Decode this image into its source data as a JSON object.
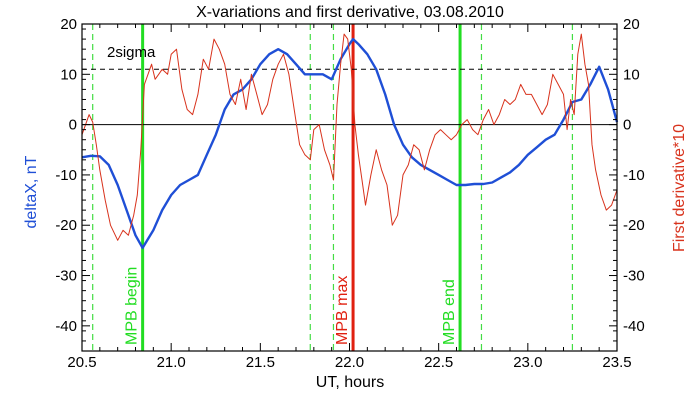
{
  "chart_data": {
    "type": "line",
    "title": "X-variations and first derivative, 03.08.2010",
    "xlabel": "UT, hours",
    "ylabel_left": "deltaX, nT",
    "ylabel_right": "First derivative*10",
    "xlim": [
      20.5,
      23.5
    ],
    "ylim": [
      -45,
      20
    ],
    "xticks": [
      20.5,
      21.0,
      21.5,
      22.0,
      22.5,
      23.0,
      23.5
    ],
    "xtick_labels": [
      "20.5",
      "21.0",
      "21.5",
      "22.0",
      "22.5",
      "23.0",
      "23.5"
    ],
    "yticks": [
      -40,
      -30,
      -20,
      -10,
      0,
      10,
      20
    ],
    "ytick_labels": [
      "-40",
      "-30",
      "-20",
      "-10",
      "0",
      "10",
      "20"
    ],
    "grid": false,
    "colors": {
      "deltaX": "#1f4fd6",
      "derivative": "#d8321c",
      "mpb_begin_end": "#22dd22",
      "mpb_max": "#e02010",
      "dashed_green": "#44dd44",
      "reference": "#000000"
    },
    "threshold": {
      "value": 11,
      "label": "2sigma"
    },
    "zero_line": 0,
    "vertical_markers": [
      {
        "x": 20.84,
        "label": "MPB begin",
        "style": "solid",
        "color": "green"
      },
      {
        "x": 22.02,
        "label": "MPB max",
        "style": "solid",
        "color": "red"
      },
      {
        "x": 22.62,
        "label": "MPB end",
        "style": "solid",
        "color": "green"
      }
    ],
    "dashed_lines": [
      20.56,
      21.78,
      21.91,
      22.74,
      23.25
    ],
    "series": [
      {
        "key": "deltaX",
        "axis": "left",
        "x": [
          20.5,
          20.55,
          20.6,
          20.65,
          20.7,
          20.75,
          20.8,
          20.84,
          20.9,
          20.95,
          21.0,
          21.05,
          21.1,
          21.15,
          21.2,
          21.25,
          21.3,
          21.35,
          21.4,
          21.45,
          21.5,
          21.55,
          21.6,
          21.65,
          21.7,
          21.75,
          21.8,
          21.85,
          21.9,
          21.95,
          22.0,
          22.02,
          22.05,
          22.1,
          22.15,
          22.2,
          22.25,
          22.3,
          22.35,
          22.4,
          22.45,
          22.5,
          22.55,
          22.6,
          22.65,
          22.7,
          22.75,
          22.8,
          22.85,
          22.9,
          22.95,
          23.0,
          23.05,
          23.1,
          23.15,
          23.2,
          23.25,
          23.3,
          23.35,
          23.4,
          23.45,
          23.5
        ],
        "y": [
          -6.5,
          -6.2,
          -6.3,
          -8,
          -12,
          -17,
          -22,
          -24.5,
          -21,
          -17,
          -14,
          -12,
          -11,
          -10,
          -6,
          -2,
          3,
          6,
          7,
          9,
          12,
          14,
          15,
          14,
          12,
          10,
          10,
          10,
          9,
          13,
          16,
          17,
          16,
          14,
          11,
          6,
          0,
          -4,
          -6.5,
          -8,
          -9,
          -10,
          -11,
          -12,
          -12,
          -11.8,
          -11.8,
          -11.5,
          -10.5,
          -9.5,
          -8,
          -6,
          -4.5,
          -3,
          -2,
          1,
          4.5,
          5,
          8,
          11.5,
          7,
          0.5
        ]
      },
      {
        "key": "derivative",
        "axis": "right",
        "x": [
          20.5,
          20.52,
          20.54,
          20.56,
          20.58,
          20.6,
          20.63,
          20.66,
          20.7,
          20.73,
          20.76,
          20.79,
          20.81,
          20.83,
          20.85,
          20.87,
          20.89,
          20.91,
          20.93,
          20.95,
          20.98,
          21.0,
          21.03,
          21.06,
          21.09,
          21.12,
          21.15,
          21.18,
          21.21,
          21.24,
          21.27,
          21.3,
          21.33,
          21.36,
          21.39,
          21.42,
          21.45,
          21.48,
          21.51,
          21.54,
          21.57,
          21.6,
          21.63,
          21.66,
          21.69,
          21.72,
          21.75,
          21.78,
          21.8,
          21.83,
          21.86,
          21.89,
          21.91,
          21.93,
          21.95,
          21.97,
          21.99,
          22.01,
          22.03,
          22.05,
          22.07,
          22.09,
          22.12,
          22.15,
          22.18,
          22.21,
          22.24,
          22.27,
          22.3,
          22.33,
          22.36,
          22.39,
          22.42,
          22.45,
          22.48,
          22.51,
          22.54,
          22.57,
          22.6,
          22.63,
          22.66,
          22.69,
          22.72,
          22.75,
          22.78,
          22.81,
          22.84,
          22.87,
          22.9,
          22.93,
          22.96,
          22.99,
          23.02,
          23.05,
          23.08,
          23.11,
          23.14,
          23.17,
          23.2,
          23.22,
          23.24,
          23.26,
          23.28,
          23.3,
          23.32,
          23.34,
          23.36,
          23.38,
          23.41,
          23.44,
          23.47,
          23.5
        ],
        "y": [
          -2,
          0,
          2,
          0.5,
          -4,
          -9,
          -15,
          -20,
          -23,
          -21,
          -22,
          -18,
          -14,
          -5,
          8,
          10,
          12,
          9,
          10,
          11,
          10,
          14,
          15,
          7,
          3,
          2,
          6,
          13,
          11,
          17,
          15,
          12,
          6,
          4,
          9,
          3,
          10,
          6,
          2,
          4,
          9,
          12,
          14,
          10,
          3,
          -4,
          -6,
          -7,
          -1,
          0,
          -5,
          -8,
          -11,
          4,
          12,
          18,
          17,
          11,
          0,
          -6,
          -11,
          -16,
          -10,
          -5,
          -9,
          -12,
          -20,
          -18,
          -10,
          -8,
          -4,
          -5,
          -9,
          -5,
          -2,
          -1,
          -2,
          -3,
          -2,
          0,
          1,
          -1,
          -2,
          1,
          3,
          0,
          2,
          5,
          4,
          5,
          8,
          6,
          6,
          4,
          2,
          4,
          10,
          8,
          6,
          -1,
          5,
          2,
          14,
          18,
          12,
          8,
          -4,
          -9,
          -14,
          -17,
          -16,
          -13
        ]
      }
    ]
  }
}
